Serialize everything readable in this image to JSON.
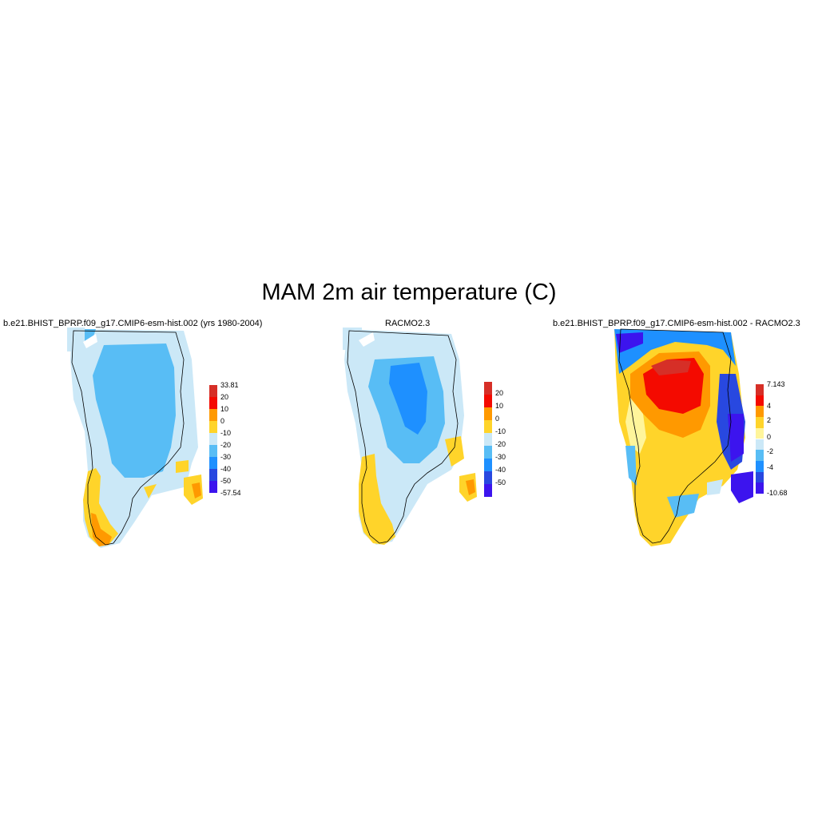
{
  "figure": {
    "title": "MAM 2m air temperature (C)"
  },
  "panels": [
    {
      "title": "b.e21.BHIST_BPRP.f09_g17.CMIP6-esm-hist.002 (yrs 1980-2004)",
      "colorbar": {
        "labels": [
          "33.81",
          "20",
          "10",
          "0",
          "-10",
          "-20",
          "-30",
          "-40",
          "-50",
          "-57.54"
        ],
        "colors": [
          "#d62f27",
          "#f40a00",
          "#ff9900",
          "#ffd42a",
          "#cbe8f7",
          "#58bdf5",
          "#1e90ff",
          "#2848e0",
          "#3c14ee"
        ]
      }
    },
    {
      "title": "RACMO2.3",
      "colorbar": {
        "labels": [
          "20",
          "10",
          "0",
          "-10",
          "-20",
          "-30",
          "-40",
          "-50"
        ],
        "colors": [
          "#d62f27",
          "#f40a00",
          "#ff9900",
          "#ffd42a",
          "#cbe8f7",
          "#58bdf5",
          "#1e90ff",
          "#2848e0",
          "#3c14ee"
        ]
      }
    },
    {
      "title": "b.e21.BHIST_BPRP.f09_g17.CMIP6-esm-hist.002 - RACMO2.3",
      "colorbar": {
        "labels": [
          "7.143",
          "4",
          "2",
          "0",
          "-2",
          "-4",
          "-10.68"
        ],
        "colors": [
          "#d62f27",
          "#f40a00",
          "#ff9900",
          "#ffd42a",
          "#fff59b",
          "#cbe8f7",
          "#58bdf5",
          "#1e90ff",
          "#2848e0",
          "#3c14ee"
        ]
      }
    }
  ]
}
